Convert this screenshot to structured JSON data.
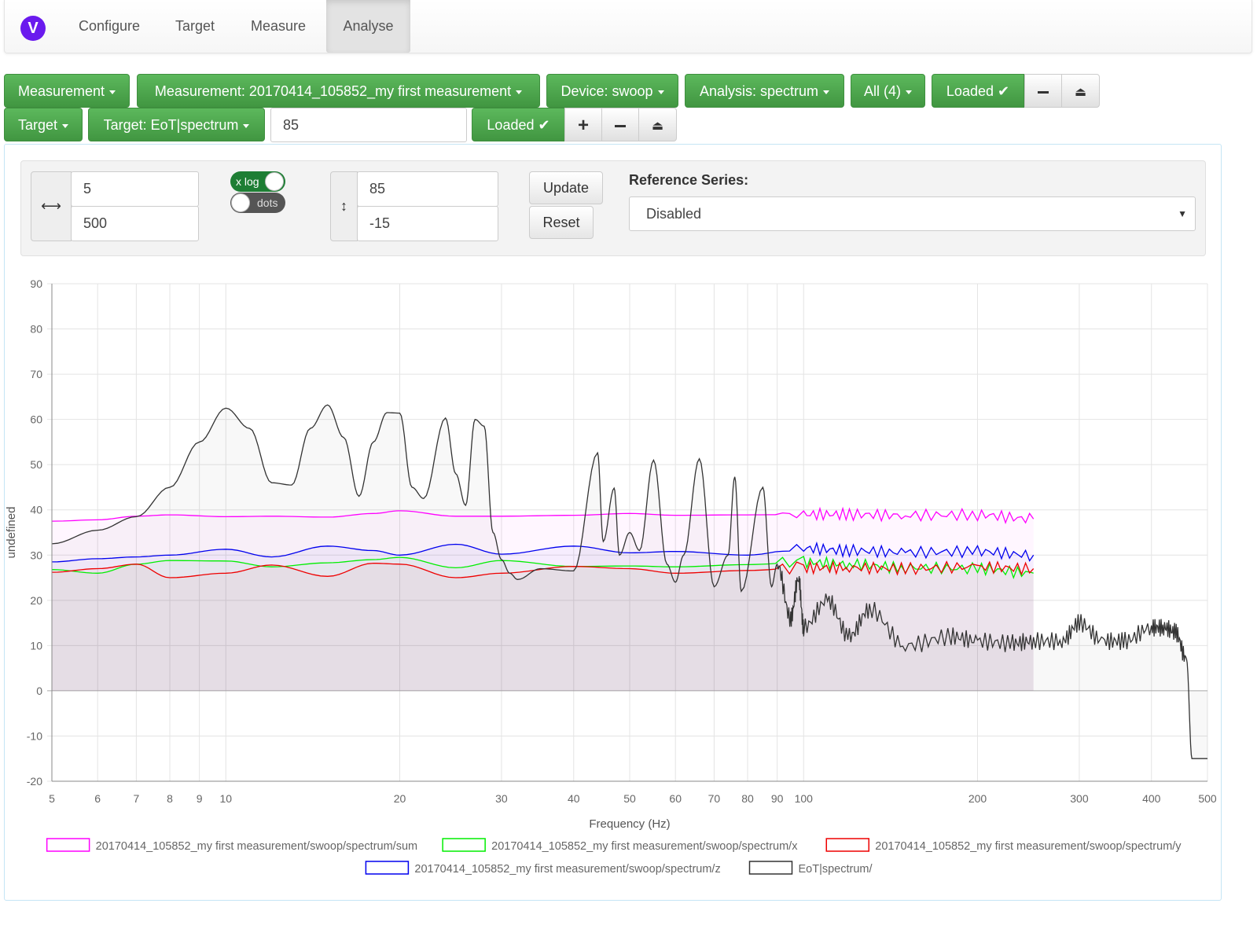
{
  "app": {
    "logo_letter": "V"
  },
  "nav": {
    "tabs": [
      {
        "label": "Configure"
      },
      {
        "label": "Target"
      },
      {
        "label": "Measure"
      },
      {
        "label": "Analyse"
      }
    ]
  },
  "measurement_bar": {
    "measurement_label": "Measurement",
    "measurement_select": "Measurement: 20170414_105852_my first measurement",
    "device_select": "Device: swoop",
    "analysis_select": "Analysis: spectrum",
    "series_select": "All (4)",
    "loaded_label": "Loaded ✔"
  },
  "target_bar": {
    "target_label": "Target",
    "target_select": "Target: EoT|spectrum",
    "offset_value": "85",
    "loaded_label": "Loaded ✔"
  },
  "controls": {
    "x_range_icon": "horizontal-arrows-icon",
    "x_min": "5",
    "x_max": "500",
    "xlog_label": "x log",
    "xlog_on": true,
    "dots_label": "dots",
    "dots_on": false,
    "y_range_icon": "vertical-arrows-icon",
    "y_max": "85",
    "y_min": "-15",
    "update_label": "Update",
    "reset_label": "Reset",
    "reference_label": "Reference Series:",
    "reference_value": "Disabled"
  },
  "chart_data": {
    "type": "line",
    "xlabel": "Frequency (Hz)",
    "ylabel": "undefined",
    "x_scale": "log",
    "xlim": [
      5,
      500
    ],
    "ylim": [
      -20,
      90
    ],
    "x_ticks": [
      5,
      6,
      7,
      8,
      9,
      10,
      20,
      30,
      40,
      50,
      60,
      70,
      80,
      90,
      100,
      200,
      300,
      400,
      500
    ],
    "y_ticks": [
      90,
      80,
      70,
      60,
      50,
      40,
      30,
      20,
      10,
      0,
      -10,
      -20
    ],
    "grid": true,
    "legend_position": "bottom",
    "series": [
      {
        "name": "20170414_105852_my first measurement/swoop/spectrum/sum",
        "color": "#ff00ff",
        "x": [
          5,
          6,
          7,
          8,
          10,
          12,
          15,
          18,
          20,
          25,
          30,
          40,
          50,
          60,
          80,
          100,
          120,
          150,
          200,
          250
        ],
        "y": [
          37.5,
          37.8,
          38.6,
          38.9,
          38.5,
          38.6,
          38.4,
          39.2,
          39.8,
          38.6,
          38.6,
          38.8,
          39.2,
          38.8,
          38.9,
          39.0,
          39.0,
          38.8,
          38.9,
          38.0
        ]
      },
      {
        "name": "20170414_105852_my first measurement/swoop/spectrum/x",
        "color": "#00ee00",
        "x": [
          5,
          6,
          7,
          8,
          10,
          12,
          15,
          18,
          20,
          25,
          30,
          40,
          50,
          60,
          80,
          100,
          120,
          150,
          200,
          250
        ],
        "y": [
          26.8,
          26.0,
          28.0,
          28.8,
          28.7,
          27.4,
          28.3,
          29.0,
          29.5,
          27.2,
          28.8,
          27.5,
          27.6,
          27.4,
          27.9,
          28.4,
          28.0,
          27.2,
          27.0,
          26.0
        ]
      },
      {
        "name": "20170414_105852_my first measurement/swoop/spectrum/y",
        "color": "#ee0000",
        "x": [
          5,
          6,
          7,
          8,
          10,
          12,
          15,
          18,
          20,
          25,
          30,
          40,
          50,
          60,
          80,
          100,
          120,
          150,
          200,
          250
        ],
        "y": [
          26.2,
          27.0,
          28.0,
          25.0,
          26.0,
          27.8,
          25.3,
          28.2,
          28.0,
          25.0,
          26.0,
          27.5,
          27.0,
          26.0,
          26.6,
          27.2,
          27.2,
          27.0,
          27.4,
          27.0
        ]
      },
      {
        "name": "20170414_105852_my first measurement/swoop/spectrum/z",
        "color": "#0000ee",
        "x": [
          5,
          6,
          7,
          8,
          10,
          12,
          15,
          18,
          20,
          25,
          30,
          40,
          50,
          60,
          80,
          100,
          120,
          150,
          200,
          250
        ],
        "y": [
          28.5,
          29.2,
          29.6,
          30.0,
          31.3,
          29.6,
          32.0,
          31.0,
          30.0,
          32.4,
          30.2,
          32.0,
          30.5,
          30.8,
          30.0,
          31.5,
          31.0,
          30.6,
          30.8,
          30.0
        ]
      },
      {
        "name": "EoT|spectrum/",
        "color": "#333333",
        "x": [
          5,
          6,
          7,
          8,
          9,
          10,
          11,
          12,
          13,
          14,
          15,
          16,
          17,
          18,
          19,
          20,
          21,
          22,
          24,
          25,
          26,
          27,
          28,
          29,
          30,
          31,
          32,
          35,
          40,
          44,
          45,
          47,
          48,
          50,
          52,
          55,
          58,
          60,
          62,
          66,
          70,
          74,
          76,
          78,
          85,
          88,
          90,
          95,
          98,
          100,
          110,
          120,
          130,
          150,
          180,
          200,
          230,
          250,
          280,
          300,
          330,
          360,
          400,
          420,
          440,
          460,
          470,
          500
        ],
        "y": [
          32.5,
          35.5,
          38.5,
          45.0,
          55.0,
          62.5,
          58.0,
          46.0,
          45.5,
          58.0,
          63.2,
          56.0,
          43.0,
          55.0,
          61.5,
          61.4,
          45.0,
          42.5,
          60.3,
          48.0,
          41.0,
          60.0,
          58.5,
          35.0,
          29.0,
          26.0,
          24.6,
          27.0,
          26.5,
          52.6,
          33.0,
          44.8,
          30.0,
          35.0,
          31.0,
          51.0,
          28.0,
          24.0,
          30.0,
          51.3,
          23.0,
          30.0,
          47.3,
          22.0,
          45.0,
          23.0,
          28.0,
          16.0,
          25.0,
          14.0,
          20.0,
          12.0,
          18.0,
          10.0,
          12.0,
          11.0,
          10.5,
          11.0,
          11.0,
          15.0,
          11.0,
          11.0,
          14.0,
          14.0,
          13.0,
          7.0,
          -15.0,
          -15.0
        ]
      }
    ]
  }
}
